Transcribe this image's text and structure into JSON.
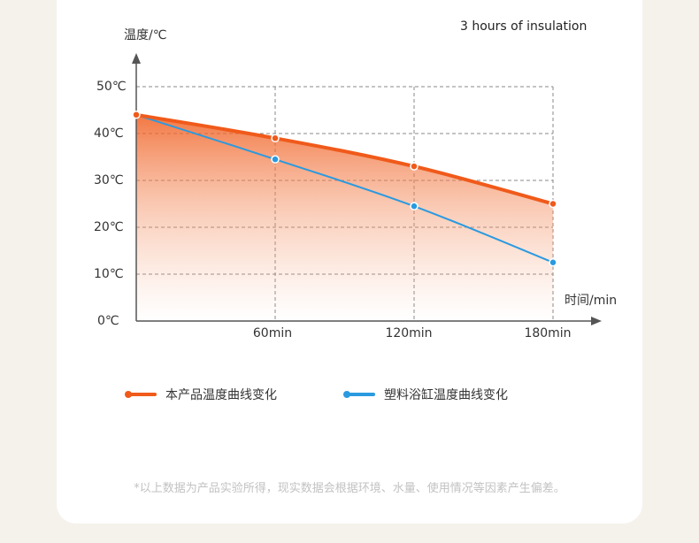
{
  "chart_data": {
    "type": "line",
    "title": "3 hours of insulation",
    "ylabel": "温度/℃",
    "xunit": "时间/min",
    "x": [
      0,
      60,
      120,
      180
    ],
    "x_tick_labels": [
      "",
      "60min",
      "120min",
      "180min"
    ],
    "y_ticks": [
      "0℃",
      "10℃",
      "20℃",
      "30℃",
      "40℃",
      "50℃"
    ],
    "ylim": [
      0,
      50
    ],
    "xlim": [
      0,
      180
    ],
    "grid": true,
    "legend_position": "bottom",
    "series": [
      {
        "name": "本产品温度曲线变化",
        "color": "#f05a1a",
        "values": [
          44,
          39,
          33,
          25
        ],
        "area_fill": true
      },
      {
        "name": "塑料浴缸温度曲线变化",
        "color": "#2a9ae0",
        "values": [
          44,
          34.5,
          24.5,
          12.5
        ]
      }
    ],
    "footnote": "*以上数据为产品实验所得，现实数据会根据环境、水量、使用情况等因素产生偏差。"
  }
}
